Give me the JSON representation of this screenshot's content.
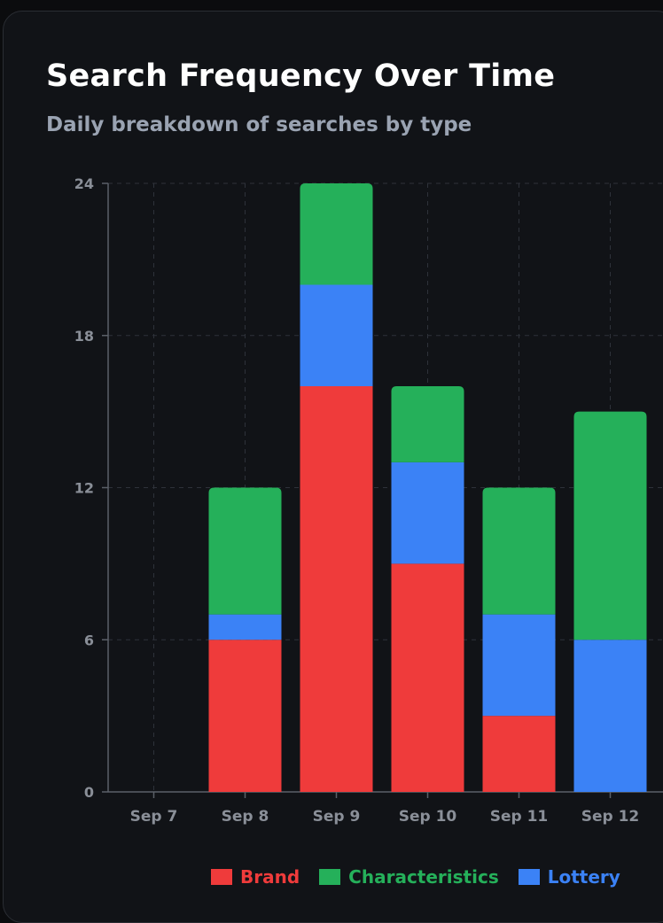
{
  "header": {
    "title": "Search Frequency Over Time",
    "subtitle": "Daily breakdown of searches by type"
  },
  "chart_data": {
    "type": "bar",
    "stacked": true,
    "title": "Search Frequency Over Time",
    "subtitle": "Daily breakdown of searches by type",
    "xlabel": "",
    "ylabel": "",
    "ylim": [
      0,
      24
    ],
    "yticks": [
      0,
      6,
      12,
      18,
      24
    ],
    "grid": true,
    "legend_position": "bottom",
    "categories": [
      "Sep 7",
      "Sep 8",
      "Sep 9",
      "Sep 10",
      "Sep 11",
      "Sep 12"
    ],
    "series": [
      {
        "name": "Brand",
        "color": "#ef3b3b",
        "values": [
          0,
          6,
          16,
          9,
          3,
          0
        ]
      },
      {
        "name": "Lottery",
        "color": "#3b82f6",
        "values": [
          0,
          1,
          4,
          4,
          4,
          6
        ]
      },
      {
        "name": "Characteristics",
        "color": "#25b05a",
        "values": [
          0,
          5,
          4,
          3,
          5,
          9
        ]
      }
    ],
    "legend_order": [
      "Brand",
      "Characteristics",
      "Lottery"
    ]
  }
}
